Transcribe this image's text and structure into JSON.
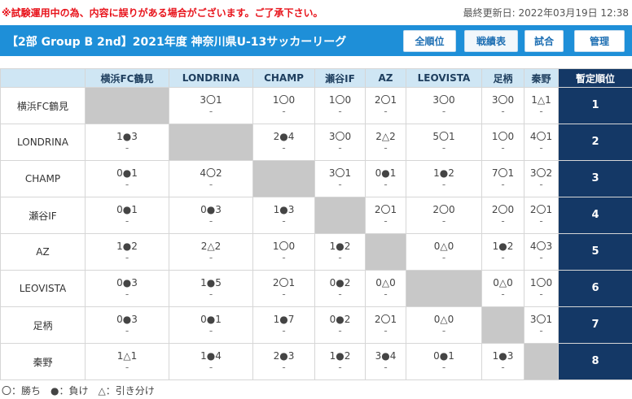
{
  "notice": "※試験運用中の為、内容に誤りがある場合がございます。ご了承下さい。",
  "last_updated": "最終更新日: 2022年03月19日 12:38",
  "title": "【2部 Group B 2nd】2021年度 神奈川県U-13サッカーリーグ",
  "nav": {
    "standings": "全順位",
    "results": "戦績表",
    "matches": "試合",
    "admin": "管理"
  },
  "table": {
    "rank_header": "暫定順位",
    "teams": [
      "横浜FC鶴見",
      "LONDRINA",
      "CHAMP",
      "瀬谷IF",
      "AZ",
      "LEOVISTA",
      "足柄",
      "秦野"
    ],
    "rows": [
      {
        "team": "横浜FC鶴見",
        "rank": "1",
        "cells": [
          null,
          "3〇1",
          "1〇0",
          "1〇0",
          "2〇1",
          "3〇0",
          "3〇0",
          "1△1"
        ]
      },
      {
        "team": "LONDRINA",
        "rank": "2",
        "cells": [
          "1●3",
          null,
          "2●4",
          "3〇0",
          "2△2",
          "5〇1",
          "1〇0",
          "4〇1"
        ]
      },
      {
        "team": "CHAMP",
        "rank": "3",
        "cells": [
          "0●1",
          "4〇2",
          null,
          "3〇1",
          "0●1",
          "1●2",
          "7〇1",
          "3〇2"
        ]
      },
      {
        "team": "瀬谷IF",
        "rank": "4",
        "cells": [
          "0●1",
          "0●3",
          "1●3",
          null,
          "2〇1",
          "2〇0",
          "2〇0",
          "2〇1"
        ]
      },
      {
        "team": "AZ",
        "rank": "5",
        "cells": [
          "1●2",
          "2△2",
          "1〇0",
          "1●2",
          null,
          "0△0",
          "1●2",
          "4〇3"
        ]
      },
      {
        "team": "LEOVISTA",
        "rank": "6",
        "cells": [
          "0●3",
          "1●5",
          "2〇1",
          "0●2",
          "0△0",
          null,
          "0△0",
          "1〇0"
        ]
      },
      {
        "team": "足柄",
        "rank": "7",
        "cells": [
          "0●3",
          "0●1",
          "1●7",
          "0●2",
          "2〇1",
          "0△0",
          null,
          "3〇1"
        ]
      },
      {
        "team": "秦野",
        "rank": "8",
        "cells": [
          "1△1",
          "1●4",
          "2●3",
          "1●2",
          "3●4",
          "0●1",
          "1●3",
          null
        ]
      }
    ],
    "sub_mark": "-"
  },
  "legend": "〇：勝ち　●：負け　△：引き分け",
  "colors": {
    "header_bar": "#1e8fd8",
    "rank_bg": "#143866",
    "col_header_bg": "#cfe6f4",
    "self_cell": "#c8c8c8",
    "notice": "#e8141c"
  }
}
